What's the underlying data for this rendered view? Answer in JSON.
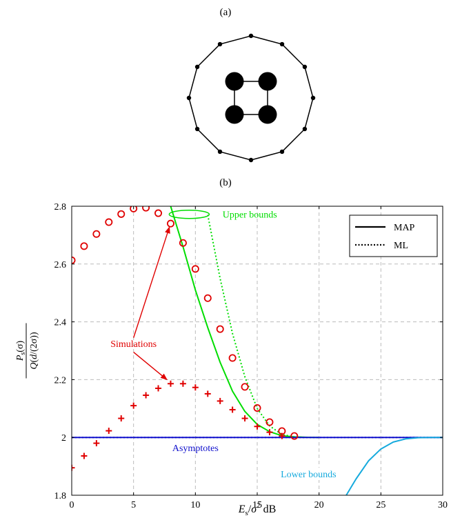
{
  "panel_labels": {
    "a": "(a)",
    "b": "(b)"
  },
  "constellation": {
    "outer_ring_points": 12,
    "inner_square_points": 4
  },
  "chart_data": {
    "type": "line",
    "xlabel": "E_s/σ² dB",
    "ylabel": "P_s(σ) / Q(d/(2σ))",
    "xlim": [
      0,
      30
    ],
    "ylim": [
      1.8,
      2.8
    ],
    "x_ticks": [
      0,
      5,
      10,
      15,
      20,
      25,
      30
    ],
    "y_ticks": [
      1.8,
      2.0,
      2.2,
      2.4,
      2.6,
      2.8
    ],
    "x_tick_labels": [
      "0",
      "5",
      "10",
      "15",
      "20",
      "25",
      "30"
    ],
    "y_tick_labels": [
      "1.8",
      "2",
      "2.2",
      "2.4",
      "2.6",
      "2.8"
    ],
    "grid": true,
    "legend": {
      "placement": "top-right",
      "entries": [
        {
          "label": "MAP",
          "style": "solid"
        },
        {
          "label": "ML",
          "style": "dotted"
        }
      ]
    },
    "annotations": {
      "upper_bounds": {
        "text": "Upper bounds",
        "color": "#00dd00"
      },
      "simulations": {
        "text": "Simulations",
        "color": "#e00000"
      },
      "asymptotes": {
        "text": "Asymptotes",
        "color": "#1010cc"
      },
      "lower_bounds": {
        "text": "Lower bounds",
        "color": "#16aadd"
      }
    },
    "series": [
      {
        "kind": "sim_ml_circles",
        "color": "#e00000",
        "marker": "circle",
        "x": [
          0,
          1,
          2,
          3,
          4,
          5,
          6,
          7,
          8,
          9,
          10,
          11,
          12,
          13,
          14,
          15,
          16,
          17,
          18
        ],
        "y": [
          2.613,
          2.662,
          2.704,
          2.745,
          2.773,
          2.792,
          2.795,
          2.776,
          2.74,
          2.673,
          2.583,
          2.482,
          2.375,
          2.275,
          2.175,
          2.102,
          2.053,
          2.022,
          2.005
        ]
      },
      {
        "kind": "sim_map_plus",
        "color": "#e00000",
        "marker": "plus",
        "x": [
          0,
          1,
          2,
          3,
          4,
          5,
          6,
          7,
          8,
          9,
          10,
          11,
          12,
          13,
          14,
          15,
          16,
          17
        ],
        "y": [
          1.895,
          1.936,
          1.98,
          2.023,
          2.066,
          2.11,
          2.146,
          2.17,
          2.186,
          2.186,
          2.173,
          2.151,
          2.126,
          2.096,
          2.066,
          2.038,
          2.018,
          2.005
        ]
      },
      {
        "kind": "upper_map",
        "color": "#00dd00",
        "style": "solid",
        "x": [
          8,
          9,
          10,
          11,
          12,
          13,
          14,
          15,
          16,
          17,
          18,
          19,
          20
        ],
        "y": [
          2.8,
          2.66,
          2.51,
          2.38,
          2.26,
          2.16,
          2.09,
          2.045,
          2.02,
          2.006,
          2.002,
          2.0005,
          2.0
        ]
      },
      {
        "kind": "upper_ml",
        "color": "#00dd00",
        "style": "dotted",
        "x": [
          11,
          12,
          13,
          14,
          15,
          16,
          17,
          18,
          19
        ],
        "y": [
          2.77,
          2.55,
          2.36,
          2.21,
          2.1,
          2.04,
          2.01,
          2.002,
          2.0
        ]
      },
      {
        "kind": "asymptote_map",
        "color": "#1010cc",
        "style": "solid",
        "x": [
          0,
          30
        ],
        "y": [
          2.0,
          2.0
        ]
      },
      {
        "kind": "asymptote_ml",
        "color": "#1010cc",
        "style": "dotted",
        "x": [
          0,
          30
        ],
        "y": [
          2.0,
          2.0
        ]
      },
      {
        "kind": "lower_map",
        "color": "#16aadd",
        "style": "solid",
        "x": [
          22.2,
          23,
          24,
          25,
          26,
          27,
          28,
          29,
          30
        ],
        "y": [
          1.8,
          1.857,
          1.919,
          1.96,
          1.984,
          1.995,
          1.999,
          2.0,
          2.0
        ]
      }
    ]
  }
}
